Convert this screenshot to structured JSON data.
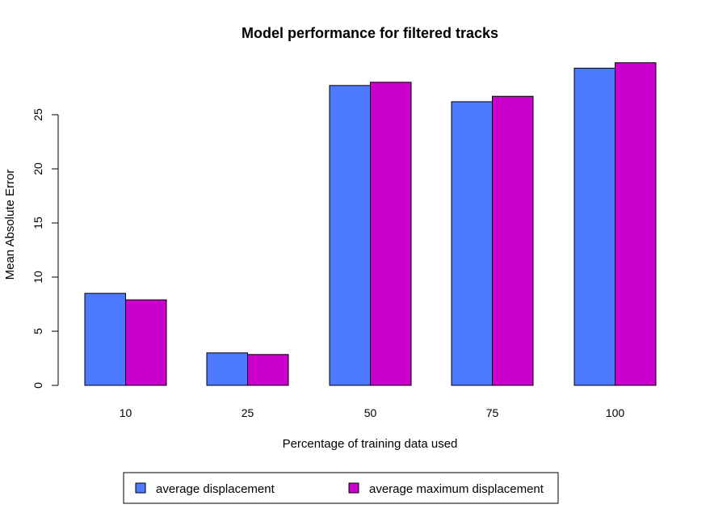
{
  "chart_data": {
    "type": "bar",
    "title": "Model performance for filtered tracks",
    "xlabel": "Percentage of training data used",
    "ylabel": "Mean Absolute Error",
    "categories": [
      "10",
      "25",
      "50",
      "75",
      "100"
    ],
    "series": [
      {
        "name": "average displacement",
        "color": "#4d79ff",
        "values": [
          8.5,
          3.0,
          27.7,
          26.2,
          29.3
        ]
      },
      {
        "name": "average maximum displacement",
        "color": "#cc00cc",
        "values": [
          7.9,
          2.85,
          28.0,
          26.7,
          29.8
        ]
      }
    ],
    "ylim": [
      0,
      30
    ],
    "yticks": [
      0,
      5,
      10,
      15,
      20,
      25
    ],
    "grid": false,
    "legend": "bottom"
  }
}
